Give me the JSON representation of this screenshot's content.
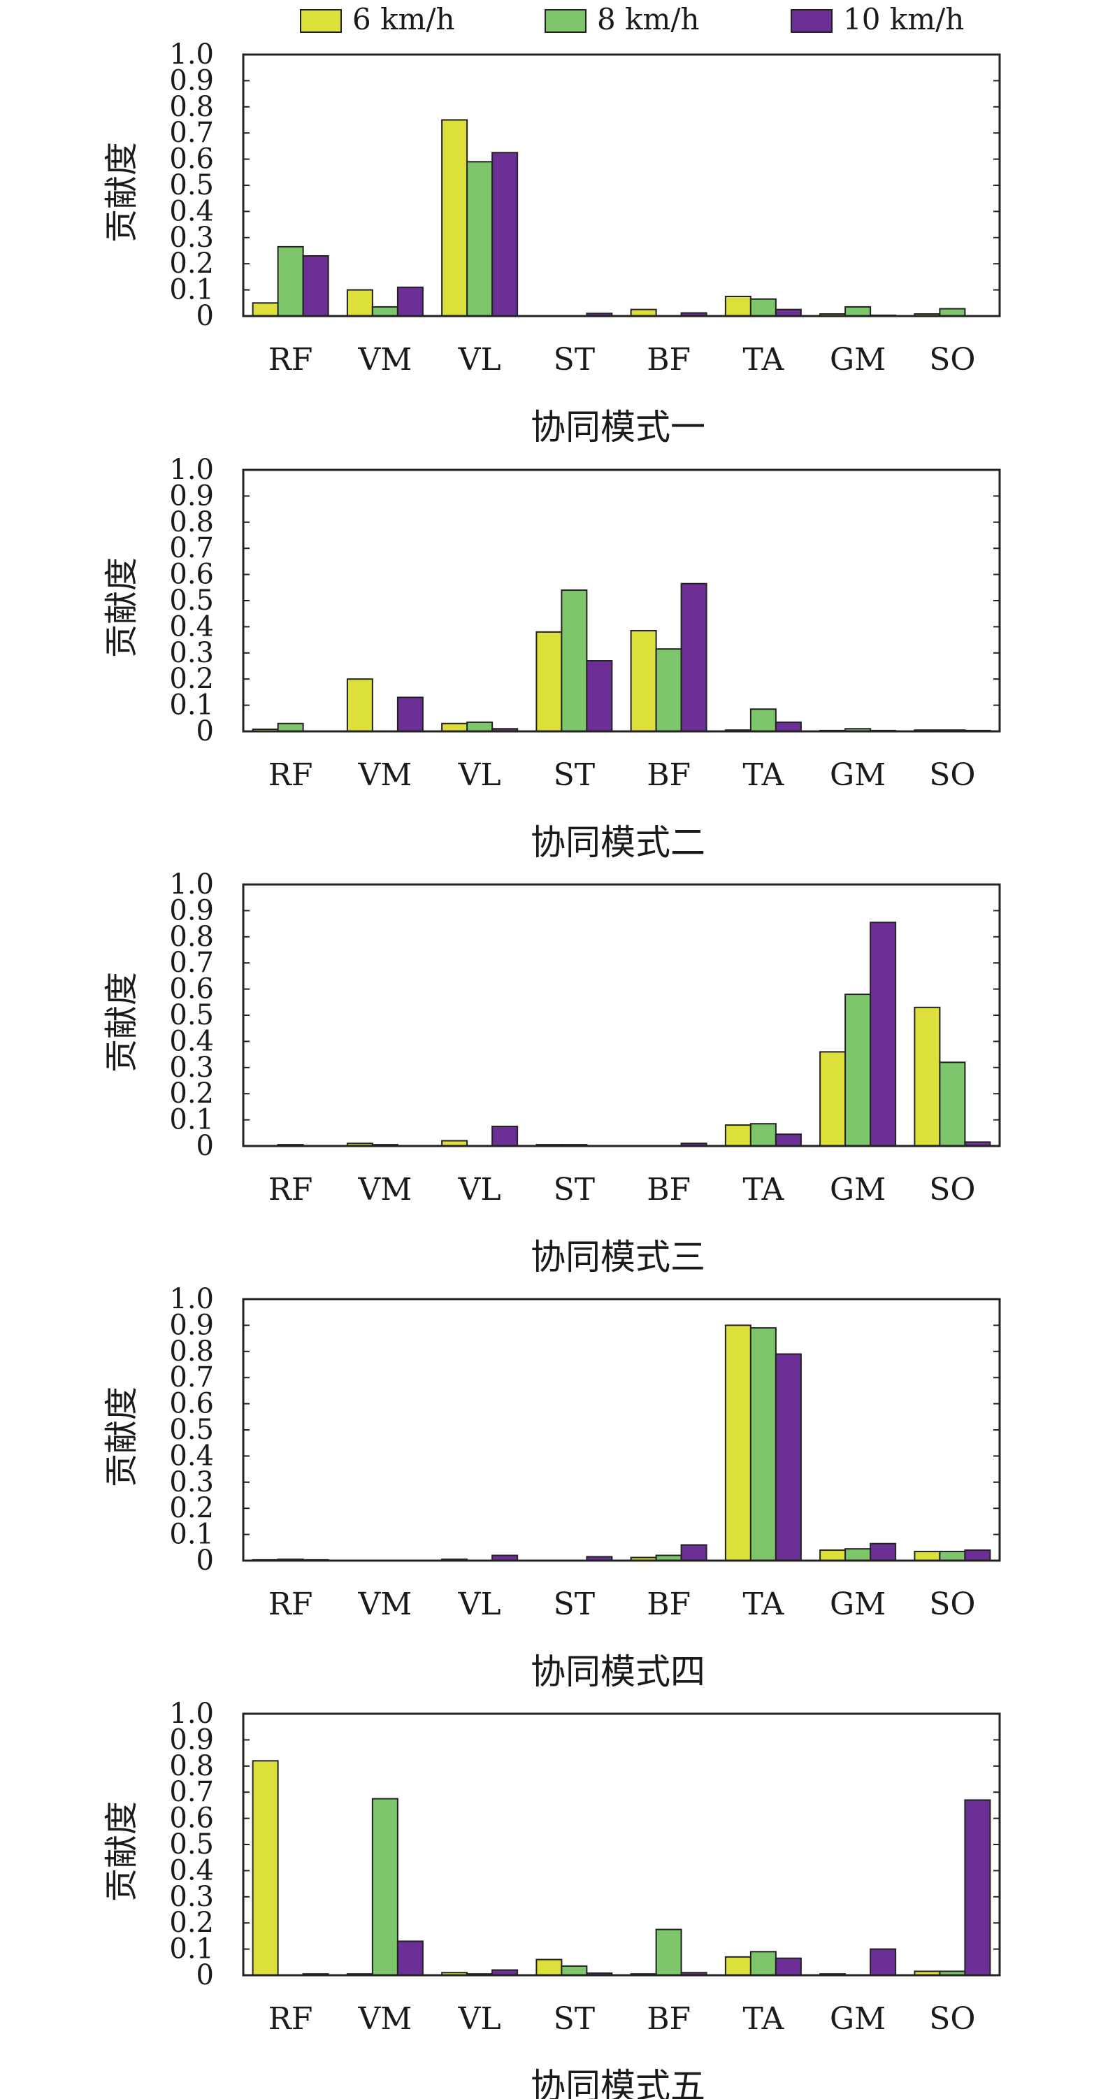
{
  "legend": [
    {
      "label": "6 km/h",
      "color": "#dde03a"
    },
    {
      "label": "8 km/h",
      "color": "#7dc66b"
    },
    {
      "label": "10 km/h",
      "color": "#6b2f96"
    }
  ],
  "chart_data": [
    {
      "type": "bar",
      "xlabel": "协同模式一",
      "ylabel": "贡献度",
      "ylim": [
        0,
        1.0
      ],
      "yticks": [
        "0",
        "0.1",
        "0.2",
        "0.3",
        "0.4",
        "0.5",
        "0.6",
        "0.7",
        "0.8",
        "0.9",
        "1.0"
      ],
      "categories": [
        "RF",
        "VM",
        "VL",
        "ST",
        "BF",
        "TA",
        "GM",
        "SO"
      ],
      "series": [
        {
          "name": "6 km/h",
          "values": [
            0.05,
            0.1,
            0.75,
            0.0,
            0.025,
            0.075,
            0.008,
            0.008
          ]
        },
        {
          "name": "8 km/h",
          "values": [
            0.265,
            0.035,
            0.59,
            0.0,
            0.0,
            0.065,
            0.035,
            0.028
          ]
        },
        {
          "name": "10 km/h",
          "values": [
            0.23,
            0.11,
            0.625,
            0.01,
            0.012,
            0.025,
            0.003,
            0.0
          ]
        }
      ]
    },
    {
      "type": "bar",
      "xlabel": "协同模式二",
      "ylabel": "贡献度",
      "ylim": [
        0,
        1.0
      ],
      "yticks": [
        "0",
        "0.1",
        "0.2",
        "0.3",
        "0.4",
        "0.5",
        "0.6",
        "0.7",
        "0.8",
        "0.9",
        "1.0"
      ],
      "categories": [
        "RF",
        "VM",
        "VL",
        "ST",
        "BF",
        "TA",
        "GM",
        "SO"
      ],
      "series": [
        {
          "name": "6 km/h",
          "values": [
            0.008,
            0.2,
            0.03,
            0.38,
            0.385,
            0.005,
            0.003,
            0.005
          ]
        },
        {
          "name": "8 km/h",
          "values": [
            0.03,
            0.0,
            0.035,
            0.54,
            0.315,
            0.085,
            0.01,
            0.005
          ]
        },
        {
          "name": "10 km/h",
          "values": [
            0.0,
            0.13,
            0.01,
            0.27,
            0.565,
            0.035,
            0.003,
            0.003
          ]
        }
      ]
    },
    {
      "type": "bar",
      "xlabel": "协同模式三",
      "ylabel": "贡献度",
      "ylim": [
        0,
        1.0
      ],
      "yticks": [
        "0",
        "0.1",
        "0.2",
        "0.3",
        "0.4",
        "0.5",
        "0.6",
        "0.7",
        "0.8",
        "0.9",
        "1.0"
      ],
      "categories": [
        "RF",
        "VM",
        "VL",
        "ST",
        "BF",
        "TA",
        "GM",
        "SO"
      ],
      "series": [
        {
          "name": "6 km/h",
          "values": [
            0.0,
            0.01,
            0.02,
            0.005,
            0.0,
            0.08,
            0.36,
            0.53
          ]
        },
        {
          "name": "8 km/h",
          "values": [
            0.005,
            0.005,
            0.0,
            0.005,
            0.0,
            0.085,
            0.58,
            0.32
          ]
        },
        {
          "name": "10 km/h",
          "values": [
            0.0,
            0.0,
            0.075,
            0.0,
            0.01,
            0.045,
            0.855,
            0.015
          ]
        }
      ]
    },
    {
      "type": "bar",
      "xlabel": "协同模式四",
      "ylabel": "贡献度",
      "ylim": [
        0,
        1.0
      ],
      "yticks": [
        "0",
        "0.1",
        "0.2",
        "0.3",
        "0.4",
        "0.5",
        "0.6",
        "0.7",
        "0.8",
        "0.9",
        "1.0"
      ],
      "categories": [
        "RF",
        "VM",
        "VL",
        "ST",
        "BF",
        "TA",
        "GM",
        "SO"
      ],
      "series": [
        {
          "name": "6 km/h",
          "values": [
            0.003,
            0.0,
            0.005,
            0.0,
            0.012,
            0.9,
            0.04,
            0.035
          ]
        },
        {
          "name": "8 km/h",
          "values": [
            0.005,
            0.0,
            0.0,
            0.0,
            0.02,
            0.89,
            0.045,
            0.035
          ]
        },
        {
          "name": "10 km/h",
          "values": [
            0.003,
            0.0,
            0.02,
            0.015,
            0.06,
            0.79,
            0.065,
            0.04
          ]
        }
      ]
    },
    {
      "type": "bar",
      "xlabel": "协同模式五",
      "ylabel": "贡献度",
      "ylim": [
        0,
        1.0
      ],
      "yticks": [
        "0",
        "0.1",
        "0.2",
        "0.3",
        "0.4",
        "0.5",
        "0.6",
        "0.7",
        "0.8",
        "0.9",
        "1.0"
      ],
      "categories": [
        "RF",
        "VM",
        "VL",
        "ST",
        "BF",
        "TA",
        "GM",
        "SO"
      ],
      "series": [
        {
          "name": "6 km/h",
          "values": [
            0.82,
            0.005,
            0.01,
            0.06,
            0.005,
            0.07,
            0.005,
            0.015
          ]
        },
        {
          "name": "8 km/h",
          "values": [
            0.0,
            0.675,
            0.005,
            0.035,
            0.175,
            0.09,
            0.0,
            0.015
          ]
        },
        {
          "name": "10 km/h",
          "values": [
            0.005,
            0.13,
            0.02,
            0.008,
            0.01,
            0.065,
            0.1,
            0.67
          ]
        }
      ]
    }
  ]
}
